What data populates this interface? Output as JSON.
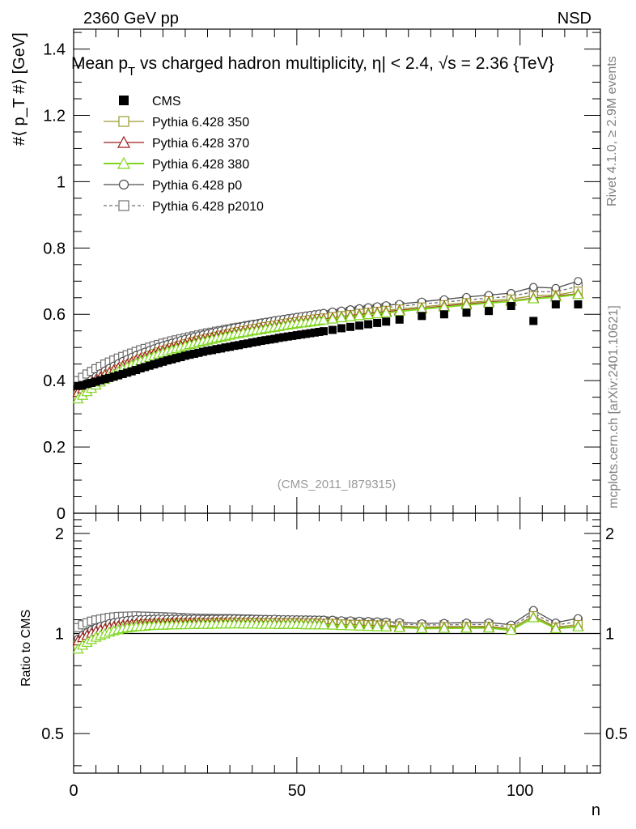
{
  "header": {
    "left": "2360 GeV pp",
    "right": "NSD"
  },
  "side_labels": {
    "rivet": "Rivet 4.1.0, ≥ 2.9M events",
    "mcplots": "mcplots.cern.ch [arXiv:2401.10621]"
  },
  "watermark": "(CMS_2011_I879315)",
  "axes": {
    "top_ylabel": "#⟨ p_T #⟩ [GeV]",
    "bottom_ylabel": "Ratio to CMS",
    "xlabel": "n"
  },
  "chart_data": [
    {
      "type": "scatter",
      "title": "Mean p_T vs charged hadron multiplicity, |η| < 2.4, √s = 2.36 {TeV}",
      "title_parts": {
        "a": "Mean p",
        "sub": "T",
        "b": " vs charged hadron multiplicity, ",
        "eta": "η",
        "c": "| < 2.4, ",
        "sqrt": "√",
        "d": "s = 2.36 {TeV}"
      },
      "xlabel": "n",
      "ylabel": "#⟨ p_T #⟩ [GeV]",
      "xlim": [
        0,
        118
      ],
      "ylim": [
        0,
        1.46
      ],
      "yticks": [
        0,
        0.2,
        0.4,
        0.6,
        0.8,
        1,
        1.2,
        1.4
      ],
      "ytick_labels": [
        "0",
        "0.2",
        "0.4",
        "0.6",
        "0.8",
        "1",
        "1.2",
        "1.4"
      ],
      "x": [
        1,
        2,
        3,
        4,
        5,
        6,
        7,
        8,
        9,
        10,
        11,
        12,
        13,
        14,
        15,
        16,
        17,
        18,
        19,
        20,
        21,
        22,
        23,
        24,
        25,
        26,
        27,
        28,
        29,
        30,
        31,
        32,
        33,
        34,
        35,
        36,
        37,
        38,
        39,
        40,
        41,
        42,
        43,
        44,
        45,
        46,
        47,
        48,
        49,
        50,
        51,
        52,
        53,
        54,
        55,
        56,
        58,
        60,
        62,
        64,
        66,
        68,
        70,
        73,
        78,
        83,
        88,
        93,
        98,
        103,
        108,
        113
      ],
      "series": [
        {
          "name": "CMS",
          "marker": "filled-square",
          "color": "#000000",
          "line": false,
          "dashed": false,
          "values": [
            0.384,
            0.386,
            0.39,
            0.393,
            0.397,
            0.401,
            0.405,
            0.408,
            0.412,
            0.416,
            0.42,
            0.424,
            0.428,
            0.432,
            0.437,
            0.441,
            0.445,
            0.449,
            0.453,
            0.457,
            0.461,
            0.464,
            0.468,
            0.471,
            0.475,
            0.478,
            0.481,
            0.484,
            0.487,
            0.49,
            0.492,
            0.495,
            0.497,
            0.5,
            0.502,
            0.505,
            0.507,
            0.51,
            0.512,
            0.515,
            0.517,
            0.52,
            0.522,
            0.524,
            0.526,
            0.529,
            0.531,
            0.533,
            0.535,
            0.537,
            0.539,
            0.541,
            0.543,
            0.545,
            0.547,
            0.549,
            0.553,
            0.558,
            0.562,
            0.566,
            0.57,
            0.574,
            0.578,
            0.584,
            0.595,
            0.6,
            0.605,
            0.61,
            0.625,
            0.58,
            0.63,
            0.63
          ]
        },
        {
          "name": "Pythia 6.428 350",
          "marker": "open-square",
          "color": "#9a9a2e",
          "line": true,
          "dashed": false,
          "values": [
            0.355,
            0.365,
            0.375,
            0.385,
            0.394,
            0.403,
            0.411,
            0.419,
            0.427,
            0.434,
            0.441,
            0.447,
            0.453,
            0.459,
            0.465,
            0.471,
            0.476,
            0.481,
            0.486,
            0.491,
            0.495,
            0.499,
            0.503,
            0.507,
            0.511,
            0.515,
            0.518,
            0.522,
            0.525,
            0.528,
            0.531,
            0.534,
            0.537,
            0.54,
            0.543,
            0.546,
            0.548,
            0.551,
            0.553,
            0.556,
            0.558,
            0.561,
            0.563,
            0.565,
            0.567,
            0.57,
            0.572,
            0.574,
            0.576,
            0.578,
            0.58,
            0.582,
            0.584,
            0.586,
            0.587,
            0.589,
            0.593,
            0.596,
            0.599,
            0.603,
            0.606,
            0.609,
            0.612,
            0.616,
            0.622,
            0.629,
            0.635,
            0.641,
            0.646,
            0.656,
            0.658,
            0.67
          ]
        },
        {
          "name": "Pythia 6.428 370",
          "marker": "open-triangle",
          "color": "#9e1a1a",
          "line": true,
          "dashed": false,
          "values": [
            0.365,
            0.375,
            0.385,
            0.394,
            0.403,
            0.411,
            0.418,
            0.425,
            0.432,
            0.438,
            0.444,
            0.45,
            0.456,
            0.462,
            0.467,
            0.472,
            0.477,
            0.482,
            0.487,
            0.491,
            0.495,
            0.5,
            0.504,
            0.507,
            0.511,
            0.515,
            0.518,
            0.521,
            0.524,
            0.527,
            0.53,
            0.533,
            0.536,
            0.539,
            0.541,
            0.544,
            0.546,
            0.549,
            0.551,
            0.553,
            0.556,
            0.558,
            0.56,
            0.562,
            0.564,
            0.567,
            0.569,
            0.571,
            0.573,
            0.575,
            0.577,
            0.578,
            0.58,
            0.582,
            0.584,
            0.586,
            0.589,
            0.592,
            0.596,
            0.599,
            0.602,
            0.605,
            0.608,
            0.612,
            0.618,
            0.625,
            0.631,
            0.637,
            0.641,
            0.649,
            0.655,
            0.662
          ]
        },
        {
          "name": "Pythia 6.428 380",
          "marker": "open-triangle",
          "color": "#7fd61e",
          "line": true,
          "dashed": false,
          "values": [
            0.345,
            0.356,
            0.367,
            0.377,
            0.387,
            0.396,
            0.404,
            0.412,
            0.42,
            0.427,
            0.434,
            0.441,
            0.447,
            0.453,
            0.459,
            0.464,
            0.47,
            0.475,
            0.48,
            0.484,
            0.489,
            0.493,
            0.497,
            0.501,
            0.505,
            0.509,
            0.512,
            0.516,
            0.519,
            0.522,
            0.525,
            0.528,
            0.531,
            0.534,
            0.537,
            0.54,
            0.542,
            0.545,
            0.547,
            0.55,
            0.552,
            0.554,
            0.557,
            0.559,
            0.561,
            0.563,
            0.566,
            0.568,
            0.57,
            0.572,
            0.574,
            0.575,
            0.577,
            0.579,
            0.581,
            0.583,
            0.586,
            0.59,
            0.593,
            0.596,
            0.599,
            0.602,
            0.605,
            0.609,
            0.616,
            0.622,
            0.628,
            0.634,
            0.639,
            0.647,
            0.652,
            0.66
          ]
        },
        {
          "name": "Pythia 6.428 p0",
          "marker": "open-circle",
          "color": "#4d4d4d",
          "line": true,
          "dashed": false,
          "values": [
            0.37,
            0.382,
            0.393,
            0.403,
            0.413,
            0.422,
            0.43,
            0.438,
            0.445,
            0.452,
            0.459,
            0.465,
            0.471,
            0.477,
            0.482,
            0.487,
            0.492,
            0.497,
            0.502,
            0.506,
            0.51,
            0.514,
            0.518,
            0.522,
            0.526,
            0.529,
            0.533,
            0.536,
            0.539,
            0.542,
            0.545,
            0.548,
            0.551,
            0.554,
            0.557,
            0.56,
            0.562,
            0.565,
            0.567,
            0.57,
            0.572,
            0.575,
            0.577,
            0.579,
            0.582,
            0.584,
            0.586,
            0.588,
            0.59,
            0.592,
            0.594,
            0.596,
            0.598,
            0.6,
            0.602,
            0.604,
            0.608,
            0.611,
            0.615,
            0.618,
            0.621,
            0.624,
            0.627,
            0.631,
            0.638,
            0.645,
            0.652,
            0.658,
            0.664,
            0.682,
            0.679,
            0.7
          ]
        },
        {
          "name": "Pythia 6.428 p2010",
          "marker": "open-square",
          "color": "#6e6e6e",
          "line": true,
          "dashed": true,
          "values": [
            0.4,
            0.41,
            0.42,
            0.428,
            0.436,
            0.443,
            0.45,
            0.456,
            0.462,
            0.468,
            0.473,
            0.478,
            0.483,
            0.488,
            0.493,
            0.497,
            0.501,
            0.505,
            0.509,
            0.513,
            0.516,
            0.52,
            0.523,
            0.526,
            0.529,
            0.532,
            0.535,
            0.538,
            0.541,
            0.544,
            0.546,
            0.549,
            0.551,
            0.554,
            0.556,
            0.559,
            0.561,
            0.563,
            0.566,
            0.568,
            0.57,
            0.572,
            0.574,
            0.576,
            0.578,
            0.58,
            0.582,
            0.584,
            0.586,
            0.588,
            0.59,
            0.592,
            0.594,
            0.595,
            0.597,
            0.599,
            0.602,
            0.605,
            0.609,
            0.612,
            0.615,
            0.618,
            0.621,
            0.624,
            0.631,
            0.637,
            0.643,
            0.649,
            0.654,
            0.668,
            0.668,
            0.684
          ]
        }
      ]
    },
    {
      "type": "line",
      "title": "",
      "xlabel": "n",
      "ylabel": "Ratio to CMS",
      "xlim": [
        0,
        118
      ],
      "ylim": [
        0.38,
        2.3
      ],
      "log_y": true,
      "yticks": [
        0.5,
        1,
        2
      ],
      "ytick_labels": [
        "0.5",
        "1",
        "2"
      ],
      "xticks": [
        0,
        50,
        100
      ],
      "xtick_labels": [
        "0",
        "50",
        "100"
      ],
      "reference_line": 1
    }
  ]
}
